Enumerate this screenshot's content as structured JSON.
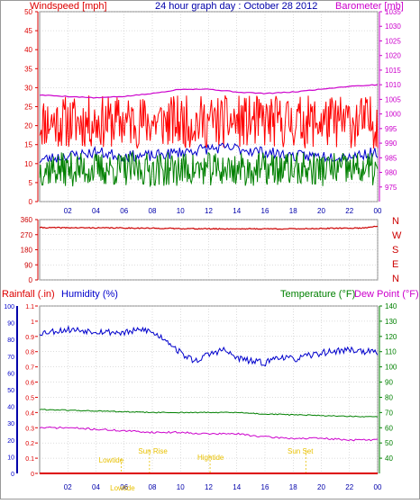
{
  "title": "24 hour graph day : October 28 2012",
  "colors": {
    "windspeed": "#dd0000",
    "gust": "#ff0000",
    "avg": "#0000cc",
    "wind_low": "#008000",
    "barometer": "#cc00cc",
    "direction": "#cc0000",
    "rainfall": "#dd0000",
    "humidity": "#0000cc",
    "temperature": "#008000",
    "dewpoint": "#cc00cc",
    "tide": "#e8c000",
    "axis_blue": "#0000aa",
    "grid": "#bbbbbb"
  },
  "chart_data": [
    {
      "type": "line",
      "id": "wind-baro",
      "title": "24 hour graph day : October 28 2012",
      "ylabel_left": "Windspeed [mph]",
      "ylabel_right": "Barometer [mb]",
      "x_ticks": [
        "02",
        "04",
        "06",
        "08",
        "10",
        "12",
        "14",
        "16",
        "18",
        "20",
        "22",
        "00"
      ],
      "x_hours": [
        0,
        24
      ],
      "ylim_left": [
        0,
        50
      ],
      "y_ticks_left": [
        "0",
        "5",
        "10",
        "15",
        "20",
        "25",
        "30",
        "35",
        "40",
        "45",
        "50"
      ],
      "ylim_right": [
        970,
        1035
      ],
      "y_ticks_right": [
        "975",
        "980",
        "985",
        "990",
        "995",
        "1000",
        "1005",
        "1010",
        "1015",
        "1020",
        "1025",
        "1030",
        "1035"
      ],
      "grid": true,
      "series": [
        {
          "key": "gust",
          "axis": "left",
          "min": 14,
          "max": 28,
          "points": 420,
          "seed": 11
        },
        {
          "key": "avg",
          "axis": "left",
          "hours": [
            0,
            2,
            4,
            6,
            8,
            10,
            12,
            14,
            16,
            18,
            20,
            22,
            24
          ],
          "values": [
            11,
            12,
            13,
            12,
            12,
            13,
            14,
            14,
            13,
            12,
            12,
            12,
            13
          ],
          "jitter": 1.5,
          "points": 240,
          "seed": 23
        },
        {
          "key": "wind_low",
          "axis": "left",
          "min": 4,
          "max": 13,
          "points": 420,
          "seed": 37
        },
        {
          "key": "barometer",
          "axis": "right",
          "hours": [
            0,
            2,
            4,
            6,
            8,
            10,
            12,
            14,
            16,
            18,
            20,
            22,
            24
          ],
          "values": [
            1006.5,
            1006,
            1005.5,
            1006,
            1007,
            1008.5,
            1008.5,
            1007.5,
            1007,
            1007.5,
            1008.5,
            1009.5,
            1010
          ],
          "jitter": 0.15,
          "points": 120,
          "seed": 5
        }
      ]
    },
    {
      "type": "line",
      "id": "direction",
      "ylim": [
        0,
        360
      ],
      "y_ticks": [
        "0",
        "90",
        "180",
        "270",
        "360"
      ],
      "compass": [
        "N",
        "W",
        "S",
        "E",
        "N"
      ],
      "x_hours": [
        0,
        24
      ],
      "grid": true,
      "series": [
        {
          "key": "direction",
          "hours": [
            0,
            6,
            12,
            18,
            23,
            24
          ],
          "values": [
            312,
            310,
            305,
            305,
            310,
            322
          ],
          "jitter": 3,
          "points": 300,
          "seed": 41
        }
      ]
    },
    {
      "type": "line",
      "id": "rain-hum-temp",
      "ylabel_rain": "Rainfall (.in)",
      "ylabel_humidity": "Humidity (%)",
      "ylabel_temperature": "Temperature (°F)",
      "ylabel_dewpoint": "Dew Point (°F)",
      "x_ticks": [
        "02",
        "04",
        "06",
        "08",
        "10",
        "12",
        "14",
        "16",
        "18",
        "20",
        "22",
        "00"
      ],
      "x_hours": [
        0,
        24
      ],
      "ylim_rain": [
        0,
        1.1
      ],
      "y_ticks_rain": [
        "0",
        "0.1",
        "0.2",
        "0.3",
        "0.4",
        "0.5",
        "0.6",
        "0.7",
        "0.8",
        "0.9",
        "1",
        "1.1"
      ],
      "ylim_humidity": [
        0,
        100
      ],
      "y_ticks_humidity": [
        "0",
        "10",
        "20",
        "30",
        "40",
        "50",
        "60",
        "70",
        "80",
        "90",
        "100"
      ],
      "ylim_temp": [
        30,
        140
      ],
      "y_ticks_temp": [
        "40",
        "50",
        "60",
        "70",
        "80",
        "90",
        "100",
        "110",
        "120",
        "130",
        "140"
      ],
      "grid": true,
      "annotations": [
        {
          "label": "Lowtide",
          "hour": 5.8,
          "text_hour": 4.2,
          "text_y": 12
        },
        {
          "label": "Sun Rise",
          "hour": 7.8,
          "text_hour": 7.0,
          "text_y": 22
        },
        {
          "label": "Hightide",
          "hour": 12.1,
          "text_hour": 11.2,
          "text_y": 15
        },
        {
          "label": "Sun Set",
          "hour": 18.9,
          "text_hour": 17.6,
          "text_y": 22
        },
        {
          "label": "Lowtide",
          "hour": 23.9,
          "text_hour": 5.0,
          "text_y": -12
        }
      ],
      "series": [
        {
          "key": "rainfall",
          "axis": "rain",
          "hours": [
            0,
            24
          ],
          "values": [
            0,
            0
          ],
          "jitter": 0,
          "points": 2,
          "seed": 1
        },
        {
          "key": "humidity",
          "axis": "humidity",
          "hours": [
            0,
            2,
            4,
            6,
            7.5,
            9,
            10,
            11,
            12,
            13,
            14,
            15,
            16,
            17,
            18,
            20,
            22,
            24
          ],
          "values": [
            84,
            86,
            85,
            84,
            86,
            80,
            72,
            67,
            71,
            74,
            69,
            67,
            66,
            70,
            68,
            72,
            74,
            72
          ],
          "jitter": 2,
          "points": 260,
          "seed": 53
        },
        {
          "key": "temperature",
          "axis": "temp",
          "hours": [
            0,
            4,
            8,
            12,
            14,
            16,
            20,
            24
          ],
          "values": [
            72,
            71,
            70,
            70,
            70,
            69,
            68,
            67
          ],
          "jitter": 0.35,
          "points": 200,
          "seed": 61
        },
        {
          "key": "dewpoint",
          "axis": "temp",
          "hours": [
            0,
            2,
            4,
            6,
            8,
            10,
            12,
            14,
            16,
            18,
            20,
            22,
            24
          ],
          "values": [
            60,
            60,
            59,
            58,
            57,
            57,
            56,
            56,
            54,
            53,
            53,
            52,
            52
          ],
          "jitter": 0.6,
          "points": 200,
          "seed": 71
        }
      ]
    }
  ]
}
